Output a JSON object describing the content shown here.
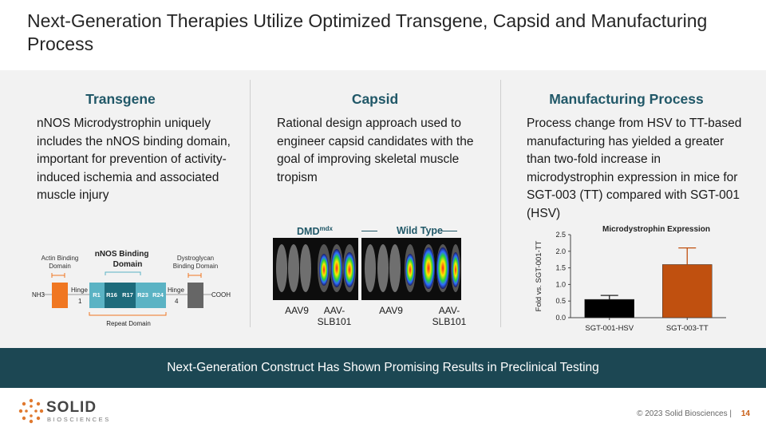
{
  "title": "Next-Generation Therapies Utilize Optimized Transgene, Capsid and Manufacturing Process",
  "columns": {
    "transgene": {
      "heading": "Transgene",
      "text": "nNOS Microdystrophin uniquely includes the nNOS binding domain, important for prevention of activity-induced ischemia and associated muscle injury"
    },
    "capsid": {
      "heading": "Capsid",
      "text": "Rational design approach used to engineer capsid candidates with the goal of improving skeletal muscle tropism"
    },
    "manufacturing": {
      "heading": "Manufacturing Process",
      "text": "Process change from HSV to TT-based manufacturing has yielded a greater than two-fold increase in microdystrophin expression in mice for SGT-003 (TT) compared with SGT-001 (HSV)"
    }
  },
  "diagram": {
    "nnos_label": "nNOS Binding Domain",
    "actin_label": "Actin Binding Domain",
    "dystroglycan_label": "Dystroglycan Binding Domain",
    "nh3": "NH3",
    "cooh": "COOH",
    "hinge1": "Hinge",
    "hinge1_num": "1",
    "hinge4": "Hinge",
    "hinge4_num": "4",
    "repeats": [
      "R1",
      "R16",
      "R17",
      "R23",
      "R24"
    ],
    "repeat_domain": "Repeat Domain",
    "colors": {
      "actin": "#f07722",
      "cooh_block": "#666666",
      "repeat_light": "#5bb3c4",
      "repeat_dark": "#1e6b7b"
    }
  },
  "imaging": {
    "group1": "DMD",
    "group1_sup": "mdx",
    "group2": "Wild Type",
    "labels": [
      "AAV9",
      "AAV-SLB101",
      "AAV9",
      "AAV-SLB101"
    ]
  },
  "chart_data": {
    "type": "bar",
    "title": "Microdystrophin Expression",
    "ylabel": "Fold vs. SGT-001-TT",
    "categories": [
      "SGT-001-HSV",
      "SGT-003-TT"
    ],
    "values": [
      0.55,
      1.6
    ],
    "error_upper": [
      0.67,
      2.1
    ],
    "ylim": [
      0,
      2.5
    ],
    "yticks": [
      "0.0",
      "0.5",
      "1.0",
      "1.5",
      "2.0",
      "2.5"
    ],
    "colors": [
      "#000000",
      "#c0500f"
    ]
  },
  "banner": "Next-Generation Construct Has Shown Promising Results in Preclinical Testing",
  "footer": {
    "copyright": "© 2023 Solid Biosciences |",
    "page": "14",
    "logo_main": "SOLID",
    "logo_sub": "BIOSCIENCES"
  }
}
